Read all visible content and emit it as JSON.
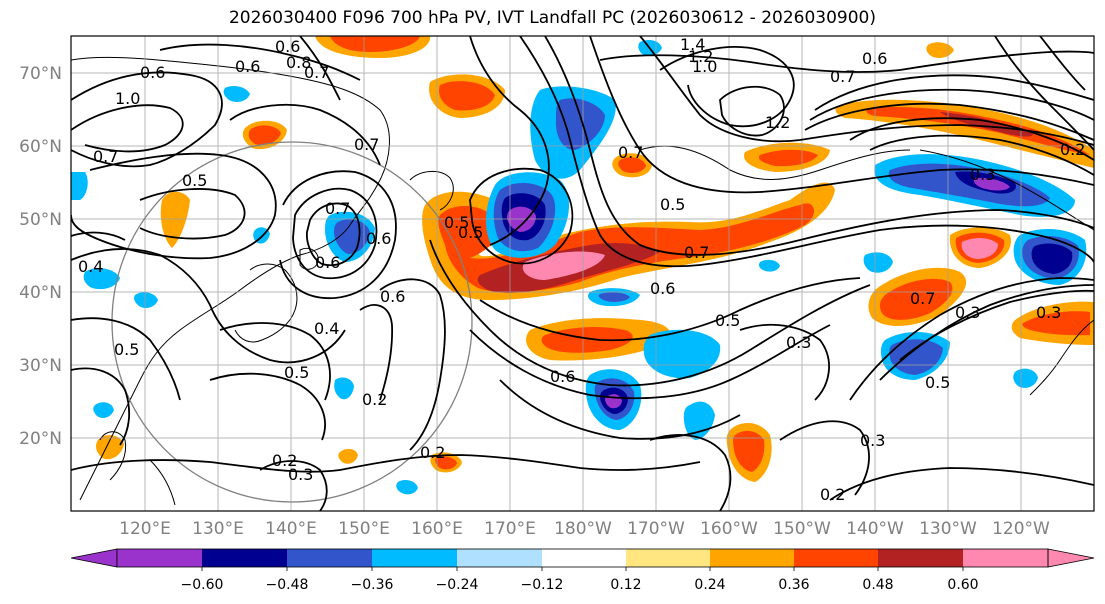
{
  "title": "2026030400 F096 700 hPa PV, IVT Landfall PC (2026030612 - 2026030900)",
  "latitude_labels": [
    "70°N",
    "60°N",
    "50°N",
    "40°N",
    "30°N",
    "20°N"
  ],
  "longitude_labels": [
    "120°E",
    "130°E",
    "140°E",
    "150°E",
    "160°E",
    "170°E",
    "180°W",
    "170°W",
    "160°W",
    "150°W",
    "140°W",
    "130°W",
    "120°W"
  ],
  "colorbar": {
    "ticks": [
      "−0.60",
      "−0.48",
      "−0.36",
      "−0.24",
      "−0.12",
      "0.12",
      "0.24",
      "0.36",
      "0.48",
      "0.60"
    ],
    "colors": [
      "#9933cc",
      "#000090",
      "#3355cc",
      "#00bbff",
      "#b0e0ff",
      "#ffffff",
      "#ffe680",
      "#ffa500",
      "#ff4400",
      "#b22222",
      "#ff88b0"
    ]
  },
  "contour_labels": [
    "0.6",
    "0.8",
    "0.7",
    "1.4",
    "1.2",
    "1.0",
    "0.6",
    "0.7",
    "0.6",
    "1.0",
    "0.6",
    "0.7",
    "0.5",
    "0.7",
    "0.7",
    "0.6",
    "0.5",
    "0.7",
    "0.6",
    "0.5",
    "0.4",
    "0.6",
    "0.6",
    "0.7",
    "0.5",
    "0.4",
    "0.5",
    "0.5",
    "0.2",
    "0.6",
    "0.5",
    "0.3",
    "0.2",
    "0.3",
    "0.2",
    "0.3",
    "0.2",
    "0.3",
    "0.5",
    "0.7",
    "1.2",
    "0.2",
    "0.3",
    "0.3"
  ]
}
